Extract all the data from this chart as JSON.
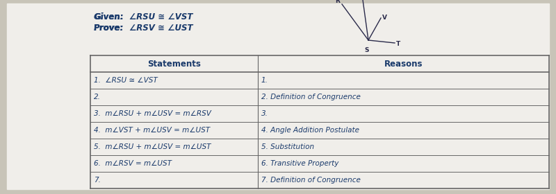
{
  "given": "Given:  ∠RSU ≅ ∠VST",
  "prove": "Prove:  ∠RSV ≅ ∠UST",
  "outer_bg": "#c8c4b8",
  "card_bg": "#f0eeea",
  "table_bg": "#f0eeea",
  "header_bg": "#f0eeea",
  "border_color": "#666666",
  "text_color": "#1a3a6b",
  "diagram_color": "#2a2a4a",
  "statements": [
    "1.  ∠RSU ≅ ∠VST",
    "2.",
    "3.  m∠RSU + m∠USV = m∠RSV",
    "4.  m∠VST + m∠USV = m∠UST",
    "5.  m∠RSU + m∠USV = m∠UST",
    "6.  m∠RSV = m∠UST",
    "7."
  ],
  "reasons": [
    "1.",
    "2. Definition of Congruence",
    "3.",
    "4. Angle Addition Postulate",
    "5. Substitution",
    "6. Transitive Property",
    "7. Definition of Congruence"
  ],
  "col_split": 0.365,
  "font_size": 7.5,
  "header_font_size": 8.5,
  "given_font_size": 8.5
}
